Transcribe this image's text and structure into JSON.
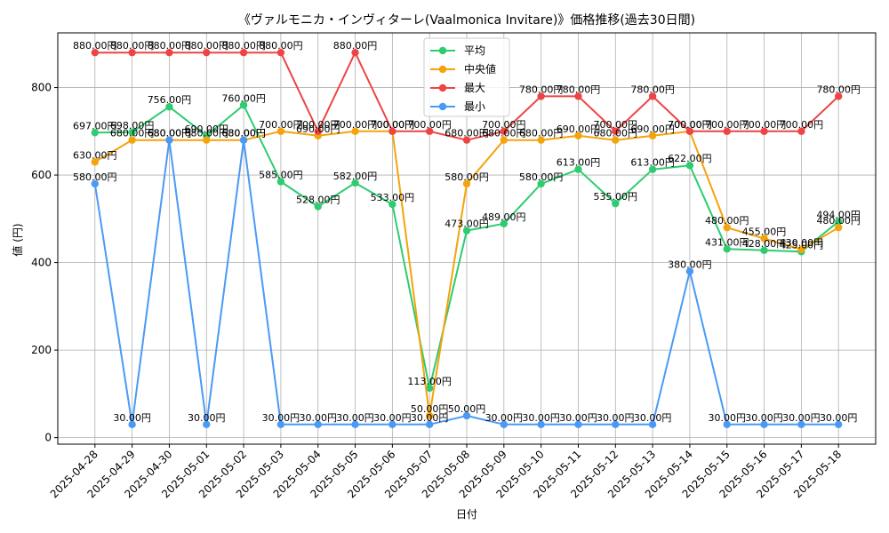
{
  "chart_data": {
    "type": "line",
    "title": "《ヴァルモニカ・インヴィターレ(Vaalmonica Invitare)》価格推移(過去30日間)",
    "xlabel": "日付",
    "ylabel": "値 (円)",
    "ylim": [
      -15,
      925
    ],
    "yticks": [
      0,
      200,
      400,
      600,
      800
    ],
    "grid": true,
    "legend_position": "top-center",
    "label_suffix": "円",
    "x": [
      "2025-04-28",
      "2025-04-29",
      "2025-04-30",
      "2025-05-01",
      "2025-05-02",
      "2025-05-03",
      "2025-05-04",
      "2025-05-05",
      "2025-05-06",
      "2025-05-07",
      "2025-05-08",
      "2025-05-09",
      "2025-05-10",
      "2025-05-11",
      "2025-05-12",
      "2025-05-13",
      "2025-05-14",
      "2025-05-15",
      "2025-05-16",
      "2025-05-17",
      "2025-05-18"
    ],
    "series": [
      {
        "name": "平均",
        "color": "#2ecc71",
        "values": [
          697,
          698,
          756,
          690,
          760,
          585,
          528,
          582,
          533,
          113,
          473,
          489,
          580,
          613,
          535,
          613,
          622,
          431,
          428,
          425,
          494
        ]
      },
      {
        "name": "中央値",
        "color": "#f5a30a",
        "values": [
          630,
          680,
          680,
          680,
          680,
          700,
          690,
          700,
          700,
          50,
          580,
          680,
          680,
          690,
          680,
          690,
          700,
          480,
          455,
          430,
          480
        ]
      },
      {
        "name": "最大",
        "color": "#ef4444",
        "values": [
          880,
          880,
          880,
          880,
          880,
          880,
          700,
          880,
          700,
          700,
          680,
          700,
          780,
          780,
          700,
          780,
          700,
          700,
          700,
          700,
          780
        ]
      },
      {
        "name": "最小",
        "color": "#4a9af5",
        "values": [
          580,
          30,
          680,
          30,
          680,
          30,
          30,
          30,
          30,
          30,
          50,
          30,
          30,
          30,
          30,
          30,
          380,
          30,
          30,
          30,
          30
        ]
      }
    ]
  }
}
